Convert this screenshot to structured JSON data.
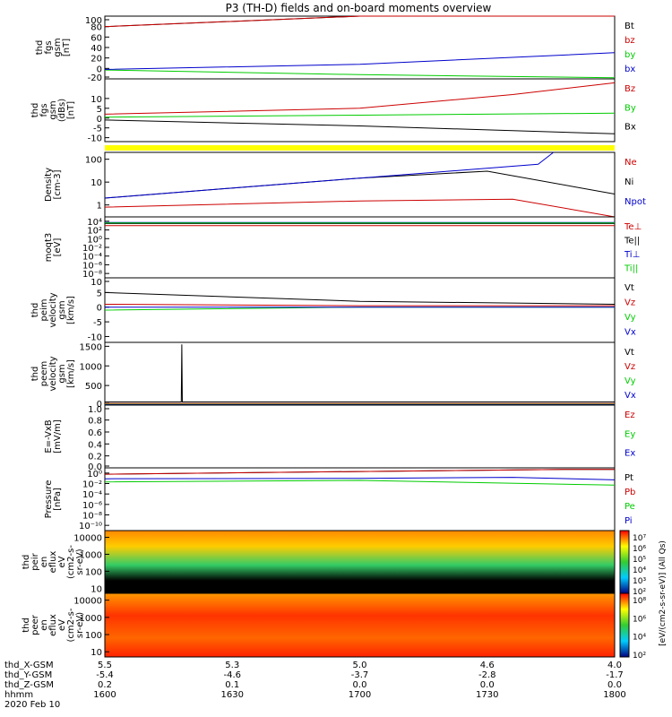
{
  "colors": {
    "black": "#000000",
    "red": "#cc0000",
    "green": "#00cc00",
    "blue": "#0000cc",
    "yellow": "#ffff00"
  },
  "chart_data": [
    {
      "type": "line",
      "title": "P3 (TH-D) fields and on-board moments overview",
      "ylabel": [
        "thd",
        "fgs",
        "gsm",
        "[nT]"
      ],
      "yticks": [
        "100",
        "80",
        "60",
        "40",
        "20",
        "0",
        "-20"
      ],
      "ylim": [
        -20,
        100
      ],
      "series": [
        {
          "name": "Bt",
          "color": "#000000",
          "x": [
            0,
            0.5,
            1
          ],
          "values": [
            80,
            100,
            100
          ]
        },
        {
          "name": "bz",
          "color": "#cc0000",
          "x": [
            0,
            0.5,
            1
          ],
          "values": [
            80,
            100,
            100
          ]
        },
        {
          "name": "by",
          "color": "#00cc00",
          "x": [
            0,
            0.5,
            1
          ],
          "values": [
            -3,
            -12,
            -18
          ]
        },
        {
          "name": "bx",
          "color": "#0000cc",
          "x": [
            0,
            0.5,
            1
          ],
          "values": [
            -2,
            8,
            30
          ]
        }
      ]
    },
    {
      "type": "line",
      "ylabel": [
        "thd",
        "fgs",
        "gsm",
        "(dBs)",
        "[nT]"
      ],
      "yticks": [
        "10",
        "5",
        "0",
        "-5",
        "-10"
      ],
      "ylim": [
        -12,
        20
      ],
      "series": [
        {
          "name": "Bz",
          "color": "#cc0000",
          "x": [
            0,
            0.5,
            0.8,
            1
          ],
          "values": [
            2,
            5,
            12,
            18
          ]
        },
        {
          "name": "By",
          "color": "#00cc00",
          "x": [
            0,
            0.5,
            1
          ],
          "values": [
            0.5,
            1.5,
            2.5
          ]
        },
        {
          "name": "Bx",
          "color": "#000000",
          "x": [
            0,
            0.5,
            1
          ],
          "values": [
            -1,
            -4,
            -8
          ]
        }
      ]
    },
    {
      "type": "line",
      "ylabel": [
        "Density",
        "[cm-3]"
      ],
      "yticks": [
        "100",
        "10",
        "1"
      ],
      "ylim": [
        0.3,
        200
      ],
      "yscale": "log",
      "series": [
        {
          "name": "Ne",
          "color": "#cc0000",
          "x": [
            0,
            0.5,
            0.8,
            1
          ],
          "values": [
            0.8,
            1.5,
            1.8,
            0.3
          ]
        },
        {
          "name": "Ni",
          "color": "#000000",
          "x": [
            0,
            0.5,
            0.75,
            1
          ],
          "values": [
            2,
            15,
            30,
            3
          ]
        },
        {
          "name": "Npot",
          "color": "#0000cc",
          "x": [
            0,
            0.5,
            0.85,
            0.88
          ],
          "values": [
            2,
            15,
            60,
            200
          ]
        }
      ]
    },
    {
      "type": "line",
      "ylabel": [
        "moqt3",
        "[eV]"
      ],
      "yticks": [
        "10⁴",
        "10²",
        "10⁰",
        "10⁻²",
        "10⁻⁴",
        "10⁻⁶",
        "10⁻⁸"
      ],
      "ylim": [
        1e-09,
        100000.0
      ],
      "yscale": "log",
      "series": [
        {
          "name": "Te⊥",
          "color": "#cc0000",
          "x": [
            0,
            1
          ],
          "values": [
            1000,
            1000
          ]
        },
        {
          "name": "Te||",
          "color": "#000000",
          "x": [
            0,
            1
          ],
          "values": [
            3000,
            3000
          ]
        },
        {
          "name": "Ti⊥",
          "color": "#0000cc",
          "x": [
            0,
            1
          ],
          "values": [
            5000,
            5000
          ]
        },
        {
          "name": "Ti||",
          "color": "#00cc00",
          "x": [
            0,
            1
          ],
          "values": [
            4000,
            4000
          ]
        }
      ]
    },
    {
      "type": "line",
      "ylabel": [
        "thd",
        "peim",
        "velocity",
        "gsm",
        "[km/s]"
      ],
      "yticks": [
        "10",
        "5",
        "0",
        "-5",
        "-10"
      ],
      "ylim": [
        -12,
        10
      ],
      "series": [
        {
          "name": "Vt",
          "color": "#000000",
          "x": [
            0,
            0.5,
            1
          ],
          "values": [
            5,
            2,
            1
          ]
        },
        {
          "name": "Vz",
          "color": "#cc0000",
          "x": [
            0,
            0.5,
            1
          ],
          "values": [
            1,
            0.5,
            0.5
          ]
        },
        {
          "name": "Vy",
          "color": "#00cc00",
          "x": [
            0,
            0.5,
            1
          ],
          "values": [
            -1,
            0,
            0
          ]
        },
        {
          "name": "Vx",
          "color": "#0000cc",
          "x": [
            0,
            0.5,
            1
          ],
          "values": [
            0,
            0,
            0
          ]
        }
      ]
    },
    {
      "type": "line",
      "ylabel": [
        "thd",
        "peem",
        "velocity",
        "gsm",
        "[km/s]"
      ],
      "yticks": [
        "1500",
        "1000",
        "500",
        "0"
      ],
      "ylim": [
        0,
        1600
      ],
      "series": [
        {
          "name": "Vt",
          "color": "#000000",
          "x": [
            0,
            0.15,
            0.151,
            0.152,
            1
          ],
          "values": [
            80,
            80,
            1550,
            80,
            80
          ]
        },
        {
          "name": "Vz",
          "color": "#cc0000",
          "x": [
            0,
            1
          ],
          "values": [
            40,
            40
          ]
        },
        {
          "name": "Vy",
          "color": "#00cc00",
          "x": [
            0,
            1
          ],
          "values": [
            20,
            20
          ]
        },
        {
          "name": "Vx",
          "color": "#0000cc",
          "x": [
            0,
            1
          ],
          "values": [
            10,
            10
          ]
        }
      ]
    },
    {
      "type": "line",
      "ylabel": [
        "E=-VxB",
        "[mV/m]"
      ],
      "yticks": [
        "1.0",
        "0.8",
        "0.6",
        "0.4",
        "0.2",
        "0.0"
      ],
      "ylim": [
        0,
        1.05
      ],
      "series": [
        {
          "name": "Ez",
          "color": "#cc0000",
          "x": [
            0,
            1
          ],
          "values": [
            0,
            0
          ]
        },
        {
          "name": "Ey",
          "color": "#00cc00",
          "x": [
            0,
            1
          ],
          "values": [
            0,
            0
          ]
        },
        {
          "name": "Ex",
          "color": "#0000cc",
          "x": [
            0,
            1
          ],
          "values": [
            0,
            0
          ]
        }
      ]
    },
    {
      "type": "line",
      "ylabel": [
        "Pressure",
        "[nPa]"
      ],
      "yticks": [
        "10⁰",
        "10⁻²",
        "10⁻⁴",
        "10⁻⁶",
        "10⁻⁸",
        "10⁻¹⁰"
      ],
      "ylim": [
        1e-11,
        10
      ],
      "yscale": "log",
      "series": [
        {
          "name": "Pt",
          "color": "#000000",
          "x": [
            0,
            0.5,
            0.9,
            1
          ],
          "values": [
            0.6,
            2,
            5,
            5
          ]
        },
        {
          "name": "Pb",
          "color": "#cc0000",
          "x": [
            0,
            0.5,
            0.9,
            1
          ],
          "values": [
            0.6,
            2,
            5,
            5
          ]
        },
        {
          "name": "Pe",
          "color": "#00cc00",
          "x": [
            0,
            0.5,
            1
          ],
          "values": [
            0.02,
            0.04,
            0.005
          ]
        },
        {
          "name": "Pi",
          "color": "#0000cc",
          "x": [
            0,
            0.5,
            0.8,
            1
          ],
          "values": [
            0.08,
            0.1,
            0.15,
            0.05
          ]
        }
      ]
    },
    {
      "type": "heatmap",
      "ylabel": [
        "thd",
        "peir",
        "en",
        "eflux",
        "eV",
        "(cm2-s-",
        "sr-eV)"
      ],
      "yticks": [
        "10000",
        "1000",
        "100",
        "10"
      ],
      "ylim": [
        5,
        25000
      ],
      "yscale": "log"
    },
    {
      "type": "heatmap",
      "ylabel": [
        "thd",
        "peer",
        "en",
        "eflux",
        "eV",
        "(cm2-s-",
        "sr-eV)"
      ],
      "yticks": [
        "10000",
        "1000",
        "100",
        "10"
      ],
      "ylim": [
        5,
        25000
      ],
      "yscale": "log"
    }
  ],
  "labels": {
    "bar_yellow": "",
    "colorbar_top_ticks": [
      "10⁷",
      "10⁶",
      "10⁵",
      "10⁴",
      "10³",
      "10²"
    ],
    "colorbar_bot_ticks": [
      "10⁸",
      "10⁶",
      "10⁴",
      "10²"
    ],
    "colorbar_label": "[eV/(cm2-s-sr-eV)] (All Qs)"
  },
  "xaxis": {
    "row_labels": [
      "thd_X-GSM",
      "thd_Y-GSM",
      "thd_Z-GSM",
      "hhmm",
      "2020 Feb 10"
    ],
    "x_gsm": [
      "5.5",
      "5.3",
      "5.0",
      "4.6",
      "4.0"
    ],
    "y_gsm": [
      "-5.4",
      "-4.6",
      "-3.7",
      "-2.8",
      "-1.7"
    ],
    "z_gsm": [
      "0.2",
      "0.1",
      "0.0",
      "0.0",
      "0.0"
    ],
    "hhmm": [
      "1600",
      "1630",
      "1700",
      "1730",
      "1800"
    ]
  }
}
